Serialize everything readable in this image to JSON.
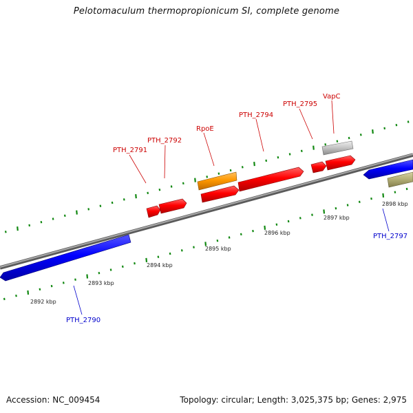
{
  "title": "Pelotomaculum thermopropionicum SI, complete genome",
  "footer": {
    "accession": "Accession: NC_009454",
    "topology": "Topology: circular; Length: 3,025,375 bp; Genes: 2,975"
  },
  "colors": {
    "forward_gene": "#ff0000",
    "reverse_gene": "#0000ff",
    "rna_gene": "#ff9900",
    "pseudo_gene": "#c0c0c0",
    "other_gene": "#b5b078",
    "tick": "#118811",
    "backbone": "#808080",
    "forward_label": "#cc0000",
    "reverse_label": "#0000cc"
  },
  "scale_labels": [
    "2892 kbp",
    "2893 kbp",
    "2894 kbp",
    "2895 kbp",
    "2896 kbp",
    "2897 kbp",
    "2898 kbp"
  ],
  "forward_genes": [
    {
      "label": "PTH_2791",
      "color": "red"
    },
    {
      "label": "PTH_2792",
      "color": "red"
    },
    {
      "label": "RpoE",
      "color": "red"
    },
    {
      "label": "PTH_2794",
      "color": "red"
    },
    {
      "label": "PTH_2795",
      "color": "red"
    },
    {
      "label": "VapC",
      "color": "red"
    }
  ],
  "reverse_genes": [
    {
      "label": "PTH_2790",
      "color": "blue"
    },
    {
      "label": "PTH_2797",
      "color": "blue"
    }
  ]
}
